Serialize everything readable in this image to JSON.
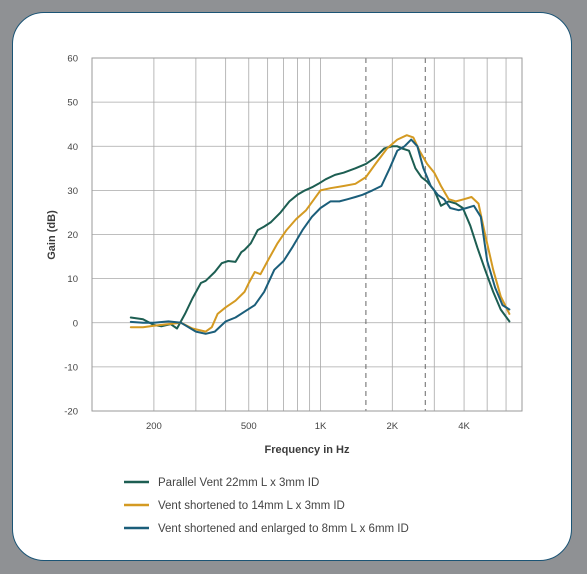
{
  "chart_data": {
    "type": "line",
    "xlabel": "Frequency in Hz",
    "ylabel": "Gain (dB)",
    "x_scale": "log",
    "xlim": [
      110,
      7000
    ],
    "ylim": [
      -20,
      60
    ],
    "y_ticks": [
      -20,
      -10,
      0,
      10,
      20,
      30,
      40,
      50,
      60
    ],
    "x_ticks": [
      {
        "value": 200,
        "label": "200"
      },
      {
        "value": 500,
        "label": "500"
      },
      {
        "value": 1000,
        "label": "1K"
      },
      {
        "value": 2000,
        "label": "2K"
      },
      {
        "value": 4000,
        "label": "4K"
      }
    ],
    "grid": true,
    "reference_lines_x": [
      1550,
      2750
    ],
    "legend_position": "bottom",
    "series": [
      {
        "name": "Parallel Vent 22mm L x 3mm ID",
        "color": "#1d5e52",
        "x": [
          160,
          180,
          200,
          215,
          235,
          250,
          270,
          290,
          315,
          330,
          360,
          385,
          410,
          440,
          465,
          480,
          510,
          545,
          580,
          620,
          680,
          740,
          800,
          860,
          930,
          980,
          1050,
          1150,
          1250,
          1400,
          1550,
          1700,
          1850,
          2000,
          2100,
          2200,
          2350,
          2500,
          2650,
          2800,
          3000,
          3200,
          3450,
          3700,
          3950,
          4250,
          4550,
          4900,
          5300,
          5700,
          6200
        ],
        "y": [
          1.2,
          0.8,
          -0.5,
          -0.8,
          -0.3,
          -1.3,
          2,
          5.5,
          9,
          9.5,
          11.5,
          13.5,
          14,
          13.8,
          16,
          16.5,
          18,
          21,
          21.8,
          22.8,
          25,
          27.5,
          29,
          30,
          30.8,
          31.5,
          32.5,
          33.5,
          34,
          35,
          36,
          37.5,
          39.5,
          40,
          40,
          39.5,
          39,
          35,
          33,
          32,
          30,
          26.5,
          27.5,
          27,
          26,
          22,
          17,
          12,
          7,
          3,
          0.3
        ]
      },
      {
        "name": "Vent shortened to 14mm L x 3mm ID",
        "color": "#d49a22",
        "x": [
          160,
          180,
          200,
          230,
          260,
          290,
          330,
          350,
          370,
          400,
          440,
          480,
          500,
          530,
          560,
          600,
          660,
          720,
          790,
          870,
          940,
          1000,
          1100,
          1250,
          1400,
          1550,
          1700,
          1900,
          2100,
          2300,
          2450,
          2600,
          2800,
          3000,
          3200,
          3450,
          3700,
          4000,
          4300,
          4600,
          4900,
          5300,
          5700,
          6200
        ],
        "y": [
          -1,
          -1,
          -0.7,
          -0.3,
          0,
          -1.3,
          -2,
          -1,
          2,
          3.5,
          5,
          7,
          9,
          11.5,
          11,
          14,
          18,
          21,
          23.5,
          25.5,
          28,
          30,
          30.5,
          31,
          31.5,
          33,
          36,
          39.5,
          41.5,
          42.5,
          42,
          39,
          36,
          34,
          31,
          28,
          27.5,
          28,
          28.5,
          27,
          20,
          12,
          6,
          2
        ]
      },
      {
        "name": "Vent shortened and enlarged to 8mm L x 6mm ID",
        "color": "#1b5e7a",
        "x": [
          160,
          180,
          200,
          230,
          260,
          300,
          330,
          360,
          400,
          440,
          480,
          530,
          580,
          640,
          700,
          760,
          840,
          920,
          1000,
          1100,
          1200,
          1300,
          1400,
          1500,
          1650,
          1800,
          1950,
          2100,
          2250,
          2400,
          2550,
          2700,
          2900,
          3100,
          3300,
          3500,
          3800,
          4100,
          4400,
          4700,
          5000,
          5400,
          5800,
          6200
        ],
        "y": [
          0.2,
          0,
          0,
          0.3,
          0,
          -2,
          -2.5,
          -2,
          0.3,
          1.2,
          2.5,
          4,
          7,
          12,
          14,
          17,
          21,
          24,
          26,
          27.5,
          27.5,
          28,
          28.5,
          29,
          30,
          31,
          35,
          39,
          40,
          41.5,
          40,
          35,
          31,
          29,
          28,
          26,
          25.5,
          26,
          26.5,
          24,
          14,
          8,
          4,
          3
        ]
      }
    ]
  }
}
